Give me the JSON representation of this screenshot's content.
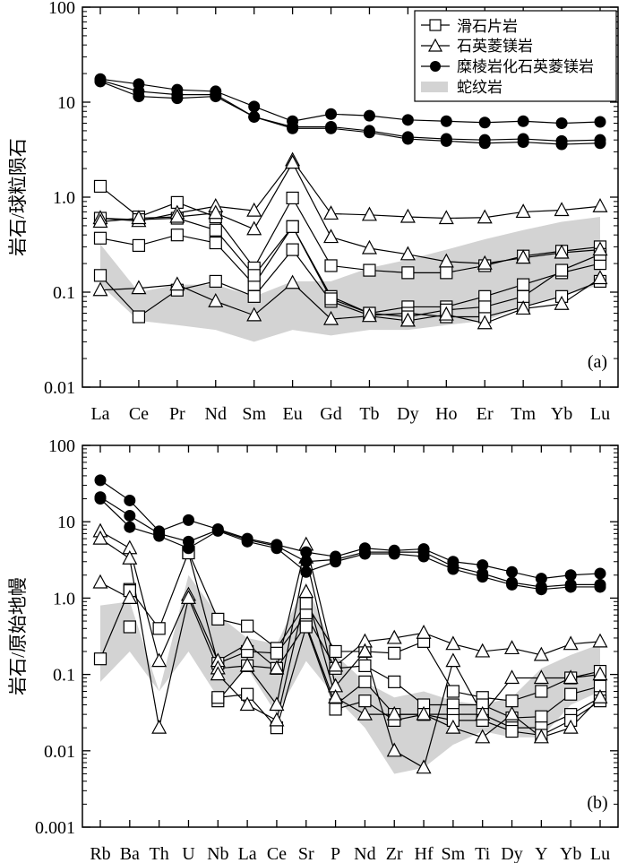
{
  "chart_data": [
    {
      "type": "line",
      "title": "",
      "panel_label": "(a)",
      "ylabel": "岩石/球粒陨石",
      "xlabel": "",
      "yscale": "log",
      "ylim": [
        0.01,
        100
      ],
      "ytick_labels": [
        "0.01",
        "0.1",
        "1.0",
        "10",
        "100"
      ],
      "categories": [
        "La",
        "Ce",
        "Pr",
        "Nd",
        "Sm",
        "Eu",
        "Gd",
        "Tb",
        "Dy",
        "Ho",
        "Er",
        "Tm",
        "Yb",
        "Lu"
      ],
      "legend": [
        "滑石片岩",
        "石英菱镁岩",
        "糜棱岩化石英菱镁岩",
        "蛇纹岩"
      ],
      "legend_position": "top-right",
      "series": [
        {
          "name": "滑石片岩",
          "marker": "square",
          "values": [
            1.3,
            0.62,
            0.88,
            0.62,
            0.18,
            0.98,
            0.19,
            0.17,
            0.16,
            0.16,
            0.19,
            0.24,
            0.27,
            0.3
          ]
        },
        {
          "name": "滑石片岩",
          "marker": "square",
          "values": [
            0.37,
            0.31,
            0.4,
            0.33,
            0.12,
            0.49,
            0.09,
            0.06,
            0.07,
            0.07,
            0.09,
            0.12,
            0.16,
            0.2
          ]
        },
        {
          "name": "滑石片岩",
          "marker": "square",
          "values": [
            0.15,
            0.055,
            0.105,
            0.13,
            0.09,
            0.28,
            0.08,
            0.057,
            0.06,
            0.055,
            0.055,
            0.07,
            0.09,
            0.13
          ]
        },
        {
          "name": "滑石片岩",
          "marker": "square",
          "values": [
            0.6,
            0.58,
            0.6,
            0.45,
            0.15,
            0.49,
            0.085,
            0.06,
            0.055,
            0.065,
            0.07,
            0.09,
            0.17,
            0.25
          ]
        },
        {
          "name": "石英菱镁岩",
          "marker": "triangle",
          "values": [
            0.6,
            0.56,
            0.68,
            0.8,
            0.72,
            2.45,
            0.67,
            0.65,
            0.62,
            0.6,
            0.61,
            0.7,
            0.73,
            0.8
          ]
        },
        {
          "name": "石英菱镁岩",
          "marker": "triangle",
          "values": [
            0.55,
            0.6,
            0.62,
            0.68,
            0.46,
            2.3,
            0.38,
            0.29,
            0.25,
            0.21,
            0.2,
            0.23,
            0.26,
            0.28
          ]
        },
        {
          "name": "石英菱镁岩",
          "marker": "triangle",
          "values": [
            0.105,
            0.11,
            0.12,
            0.08,
            0.057,
            0.125,
            0.052,
            0.056,
            0.05,
            0.058,
            0.047,
            0.067,
            0.075,
            0.14
          ]
        },
        {
          "name": "糜棱岩化石英菱镁岩",
          "marker": "circle",
          "values": [
            17.5,
            15.5,
            13.5,
            13,
            9,
            6.3,
            7.5,
            7.2,
            6.5,
            6.3,
            6.1,
            6.3,
            6,
            6.2
          ]
        },
        {
          "name": "糜棱岩化石英菱镁岩",
          "marker": "circle",
          "values": [
            17,
            13,
            12,
            12,
            7,
            5.5,
            5.5,
            5,
            4.3,
            4.1,
            4,
            4.1,
            3.9,
            4
          ]
        },
        {
          "name": "糜棱岩化石英菱镁岩",
          "marker": "circle",
          "values": [
            16.5,
            11.5,
            11,
            11.5,
            7,
            5.3,
            5.3,
            4.8,
            4.1,
            3.9,
            3.7,
            3.8,
            3.6,
            3.7
          ]
        },
        {
          "name": "蛇纹岩",
          "type": "band",
          "upper": [
            0.32,
            0.1,
            0.12,
            0.12,
            0.09,
            0.13,
            0.13,
            0.18,
            0.22,
            0.28,
            0.36,
            0.45,
            0.55,
            0.62
          ],
          "lower": [
            0.12,
            0.05,
            0.045,
            0.04,
            0.03,
            0.04,
            0.035,
            0.04,
            0.04,
            0.045,
            0.05,
            0.07,
            0.09,
            0.12
          ]
        }
      ]
    },
    {
      "type": "line",
      "title": "",
      "panel_label": "(b)",
      "ylabel": "岩石/原始地幔",
      "xlabel": "",
      "yscale": "log",
      "ylim": [
        0.001,
        100
      ],
      "ytick_labels": [
        "0.001",
        "0.01",
        "0.1",
        "1.0",
        "10",
        "100"
      ],
      "categories": [
        "Rb",
        "Ba",
        "Th",
        "U",
        "Nb",
        "La",
        "Ce",
        "Sr",
        "P",
        "Nd",
        "Zr",
        "Hf",
        "Sm",
        "Ti",
        "Dy",
        "Y",
        "Yb",
        "Lu"
      ],
      "series": [
        {
          "name": "滑石片岩",
          "marker": "square",
          "values": [
            0.16,
            1.3,
            0.4,
            4,
            0.53,
            0.43,
            0.22,
            0.85,
            0.2,
            0.2,
            0.19,
            0.27,
            0.06,
            0.05,
            0.045,
            0.06,
            0.09,
            0.11
          ]
        },
        {
          "name": "滑石片岩",
          "marker": "square",
          "values": [
            null,
            1.25,
            null,
            3.9,
            0.14,
            0.2,
            0.19,
            0.6,
            0.12,
            0.13,
            0.08,
            0.04,
            0.04,
            0.04,
            0.027,
            0.028,
            0.055,
            0.07
          ]
        },
        {
          "name": "滑石片岩",
          "marker": "square",
          "values": [
            null,
            0.42,
            null,
            null,
            0.045,
            0.13,
            0.12,
            0.45,
            0.04,
            0.08,
            0.03,
            0.03,
            0.03,
            0.03,
            0.02,
            0.02,
            0.03,
            0.05
          ]
        },
        {
          "name": "滑石片岩",
          "marker": "square",
          "values": [
            null,
            null,
            null,
            null,
            0.05,
            0.055,
            0.02,
            0.42,
            0.035,
            0.045,
            0.025,
            0.03,
            0.025,
            0.025,
            0.018,
            0.016,
            0.025,
            0.045
          ]
        },
        {
          "name": "石英菱镁岩",
          "marker": "triangle",
          "values": [
            7.5,
            4.5,
            0.15,
            1.1,
            0.15,
            0.25,
            0.12,
            5,
            0.13,
            0.27,
            0.3,
            0.35,
            0.25,
            0.2,
            0.22,
            0.18,
            0.25,
            0.27
          ]
        },
        {
          "name": "石英菱镁岩",
          "marker": "triangle",
          "values": [
            6,
            3.3,
            0.02,
            1,
            0.12,
            0.13,
            0.04,
            3.4,
            0.07,
            0.2,
            0.01,
            0.006,
            0.15,
            0.03,
            0.09,
            0.09,
            0.09,
            0.1
          ]
        },
        {
          "name": "石英菱镁岩",
          "marker": "triangle",
          "values": [
            1.6,
            1,
            null,
            null,
            0.1,
            0.04,
            0.025,
            1.2,
            0.05,
            0.03,
            0.03,
            0.03,
            0.02,
            0.015,
            0.03,
            0.015,
            0.02,
            0.05
          ]
        },
        {
          "name": "糜棱岩化石英菱镁岩",
          "marker": "circle",
          "values": [
            35,
            19,
            7.5,
            10.5,
            8,
            6,
            5,
            4,
            3.5,
            4.5,
            4.2,
            4.4,
            3,
            2.7,
            2.2,
            1.8,
            2,
            2.1
          ]
        },
        {
          "name": "糜棱岩化石英菱镁岩",
          "marker": "circle",
          "values": [
            21,
            12,
            7,
            5.5,
            7.8,
            5.8,
            4.8,
            3,
            3.2,
            4,
            4,
            4,
            2.6,
            2.1,
            1.6,
            1.4,
            1.5,
            1.5
          ]
        },
        {
          "name": "糜棱岩化石英菱镁岩",
          "marker": "circle",
          "values": [
            20,
            8.5,
            6.5,
            4.5,
            7.6,
            5.5,
            4.5,
            2.2,
            3,
            3.8,
            3.8,
            3.5,
            2.4,
            1.9,
            1.5,
            1.3,
            1.4,
            1.4
          ]
        },
        {
          "name": "蛇纹岩",
          "type": "band",
          "upper": [
            0.8,
            0.9,
            0.06,
            2,
            0.6,
            0.3,
            0.25,
            1.6,
            0.18,
            0.08,
            0.05,
            0.06,
            0.045,
            0.04,
            0.05,
            0.12,
            0.18,
            0.25
          ],
          "lower": [
            0.08,
            0.2,
            0.06,
            0.2,
            0.05,
            0.12,
            0.03,
            0.15,
            0.05,
            0.02,
            0.005,
            0.006,
            0.012,
            0.018,
            0.015,
            0.015,
            0.04,
            0.06
          ]
        }
      ]
    }
  ]
}
